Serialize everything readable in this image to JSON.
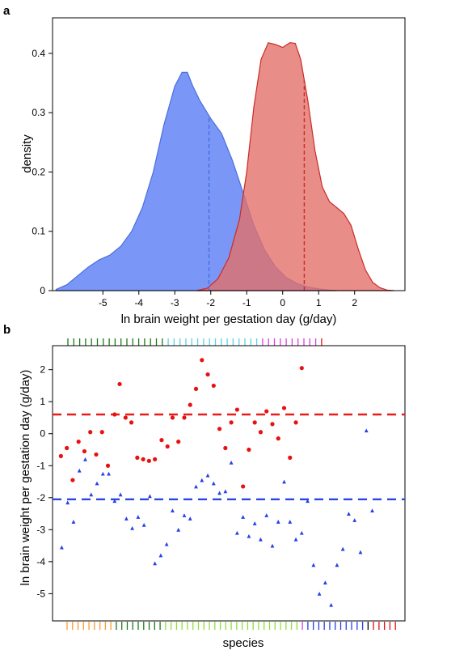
{
  "chart_data": [
    {
      "panel": "a",
      "type": "area",
      "xlabel": "ln brain weight per gestation day (g/day)",
      "ylabel": "density",
      "xlim": [
        -6.4,
        3.4
      ],
      "ylim": [
        0,
        0.46
      ],
      "xticks": [
        -5,
        -4,
        -3,
        -2,
        -1,
        0,
        1,
        2
      ],
      "yticks": [
        0,
        0.1,
        0.2,
        0.3,
        0.4
      ],
      "ytick_labels": [
        "0",
        "0.1",
        "0.2",
        "0.3",
        "0.4"
      ],
      "series": [
        {
          "color": "#6f8df5",
          "edge": "#4a6fe0",
          "mean": -2.05,
          "points": [
            [
              -6.3,
              0.002
            ],
            [
              -6.0,
              0.01
            ],
            [
              -5.7,
              0.025
            ],
            [
              -5.4,
              0.04
            ],
            [
              -5.1,
              0.052
            ],
            [
              -4.8,
              0.06
            ],
            [
              -4.5,
              0.075
            ],
            [
              -4.2,
              0.1
            ],
            [
              -3.9,
              0.14
            ],
            [
              -3.6,
              0.2
            ],
            [
              -3.3,
              0.28
            ],
            [
              -3.0,
              0.345
            ],
            [
              -2.8,
              0.368
            ],
            [
              -2.65,
              0.368
            ],
            [
              -2.5,
              0.345
            ],
            [
              -2.3,
              0.32
            ],
            [
              -2.0,
              0.29
            ],
            [
              -1.7,
              0.265
            ],
            [
              -1.4,
              0.22
            ],
            [
              -1.1,
              0.165
            ],
            [
              -0.8,
              0.11
            ],
            [
              -0.5,
              0.068
            ],
            [
              -0.2,
              0.04
            ],
            [
              0.1,
              0.022
            ],
            [
              0.4,
              0.012
            ],
            [
              0.7,
              0.006
            ],
            [
              1.0,
              0.003
            ],
            [
              1.3,
              0.001
            ],
            [
              1.5,
              0.0
            ]
          ]
        },
        {
          "color": "#e2706a",
          "edge": "#cc2b26",
          "mean": 0.6,
          "points": [
            [
              -2.4,
              0.0
            ],
            [
              -2.1,
              0.004
            ],
            [
              -1.8,
              0.02
            ],
            [
              -1.5,
              0.055
            ],
            [
              -1.2,
              0.12
            ],
            [
              -1.0,
              0.2
            ],
            [
              -0.8,
              0.31
            ],
            [
              -0.6,
              0.39
            ],
            [
              -0.4,
              0.418
            ],
            [
              -0.2,
              0.415
            ],
            [
              0.0,
              0.41
            ],
            [
              0.2,
              0.418
            ],
            [
              0.35,
              0.417
            ],
            [
              0.5,
              0.39
            ],
            [
              0.7,
              0.32
            ],
            [
              0.9,
              0.235
            ],
            [
              1.1,
              0.175
            ],
            [
              1.3,
              0.15
            ],
            [
              1.5,
              0.14
            ],
            [
              1.7,
              0.13
            ],
            [
              1.9,
              0.11
            ],
            [
              2.1,
              0.07
            ],
            [
              2.3,
              0.035
            ],
            [
              2.5,
              0.014
            ],
            [
              2.7,
              0.005
            ],
            [
              2.9,
              0.001
            ],
            [
              3.1,
              0.0
            ]
          ]
        }
      ]
    },
    {
      "panel": "b",
      "type": "scatter",
      "xlabel": "species",
      "ylabel": "ln brain weight per gestation day (g/day)",
      "ylim": [
        -5.85,
        2.75
      ],
      "yticks": [
        2,
        1,
        0,
        -1,
        -2,
        -3,
        -4,
        -5
      ],
      "xlim": [
        0,
        42
      ],
      "hlines": [
        {
          "value": 0.6,
          "color": "#e81c1c"
        },
        {
          "value": -2.05,
          "color": "#2a45e8"
        }
      ],
      "series": [
        {
          "marker": "circle",
          "color": "#e81010",
          "points": [
            [
              1,
              -0.7
            ],
            [
              1.7,
              -0.45
            ],
            [
              2.4,
              -1.45
            ],
            [
              3.1,
              -0.25
            ],
            [
              3.8,
              -0.55
            ],
            [
              4.5,
              0.05
            ],
            [
              5.2,
              -0.65
            ],
            [
              5.9,
              0.05
            ],
            [
              6.6,
              -1.0
            ],
            [
              7.4,
              0.6
            ],
            [
              8.0,
              1.55
            ],
            [
              8.7,
              0.5
            ],
            [
              9.4,
              0.35
            ],
            [
              10.1,
              -0.75
            ],
            [
              10.8,
              -0.8
            ],
            [
              11.5,
              -0.85
            ],
            [
              12.2,
              -0.8
            ],
            [
              13.0,
              -0.2
            ],
            [
              13.7,
              -0.4
            ],
            [
              14.3,
              0.5
            ],
            [
              15.0,
              -0.25
            ],
            [
              15.7,
              0.5
            ],
            [
              16.4,
              0.9
            ],
            [
              17.1,
              1.4
            ],
            [
              17.8,
              2.3
            ],
            [
              18.5,
              1.85
            ],
            [
              19.2,
              1.5
            ],
            [
              19.9,
              0.15
            ],
            [
              20.6,
              -0.45
            ],
            [
              21.3,
              0.35
            ],
            [
              22.0,
              0.75
            ],
            [
              22.7,
              -1.65
            ],
            [
              23.4,
              -0.5
            ],
            [
              24.1,
              0.35
            ],
            [
              24.8,
              0.05
            ],
            [
              25.5,
              0.7
            ],
            [
              26.2,
              0.3
            ],
            [
              26.9,
              -0.15
            ],
            [
              27.6,
              0.8
            ],
            [
              28.3,
              -0.75
            ],
            [
              29.0,
              0.35
            ],
            [
              29.7,
              2.05
            ]
          ]
        },
        {
          "marker": "triangle",
          "color": "#2540e8",
          "points": [
            [
              1.1,
              -3.55
            ],
            [
              1.8,
              -2.15
            ],
            [
              2.5,
              -2.75
            ],
            [
              3.2,
              -1.15
            ],
            [
              3.9,
              -0.8
            ],
            [
              4.6,
              -1.9
            ],
            [
              5.3,
              -1.55
            ],
            [
              6.0,
              -1.25
            ],
            [
              6.7,
              -1.25
            ],
            [
              7.4,
              -2.1
            ],
            [
              8.1,
              -1.9
            ],
            [
              8.8,
              -2.65
            ],
            [
              9.5,
              -2.95
            ],
            [
              10.2,
              -2.6
            ],
            [
              10.9,
              -2.85
            ],
            [
              11.6,
              -1.95
            ],
            [
              12.2,
              -4.05
            ],
            [
              12.9,
              -3.8
            ],
            [
              13.6,
              -3.45
            ],
            [
              14.3,
              -2.4
            ],
            [
              15.0,
              -3.0
            ],
            [
              15.7,
              -2.55
            ],
            [
              16.4,
              -2.65
            ],
            [
              17.1,
              -1.65
            ],
            [
              17.8,
              -1.45
            ],
            [
              18.5,
              -1.3
            ],
            [
              19.2,
              -1.55
            ],
            [
              19.9,
              -1.85
            ],
            [
              20.6,
              -1.8
            ],
            [
              21.3,
              -0.9
            ],
            [
              22.0,
              -3.1
            ],
            [
              22.7,
              -2.6
            ],
            [
              23.4,
              -3.2
            ],
            [
              24.1,
              -2.8
            ],
            [
              24.8,
              -3.3
            ],
            [
              25.5,
              -2.55
            ],
            [
              26.2,
              -3.5
            ],
            [
              26.9,
              -2.75
            ],
            [
              27.6,
              -1.5
            ],
            [
              28.3,
              -2.75
            ],
            [
              29.0,
              -3.3
            ],
            [
              29.7,
              -3.1
            ],
            [
              30.4,
              -2.1
            ],
            [
              31.1,
              -4.1
            ],
            [
              31.8,
              -5.0
            ],
            [
              32.5,
              -4.65
            ],
            [
              33.2,
              -5.35
            ],
            [
              33.9,
              -4.1
            ],
            [
              34.6,
              -3.6
            ],
            [
              35.3,
              -2.5
            ],
            [
              36.0,
              -2.7
            ],
            [
              36.7,
              -3.7
            ],
            [
              37.4,
              0.1
            ],
            [
              38.1,
              -2.4
            ]
          ]
        }
      ],
      "top_rug": [
        {
          "color": "#1a7a1a",
          "count": 17
        },
        {
          "color": "#5ad2e6",
          "count": 16
        },
        {
          "color": "#e23ce2",
          "count": 10
        },
        {
          "color": "#e81010",
          "count": 1
        }
      ],
      "bottom_rug": [
        {
          "color": "#ff9a2e",
          "count": 9
        },
        {
          "color": "#1a7a1a",
          "count": 9
        },
        {
          "color": "#8fe03a",
          "count": 25
        },
        {
          "color": "#e23ce2",
          "count": 1
        },
        {
          "color": "#2540e8",
          "count": 11
        },
        {
          "color": "#000000",
          "count": 1
        },
        {
          "color": "#e81010",
          "count": 5
        }
      ]
    }
  ],
  "labels": {
    "panel_a": "a",
    "panel_b": "b"
  }
}
